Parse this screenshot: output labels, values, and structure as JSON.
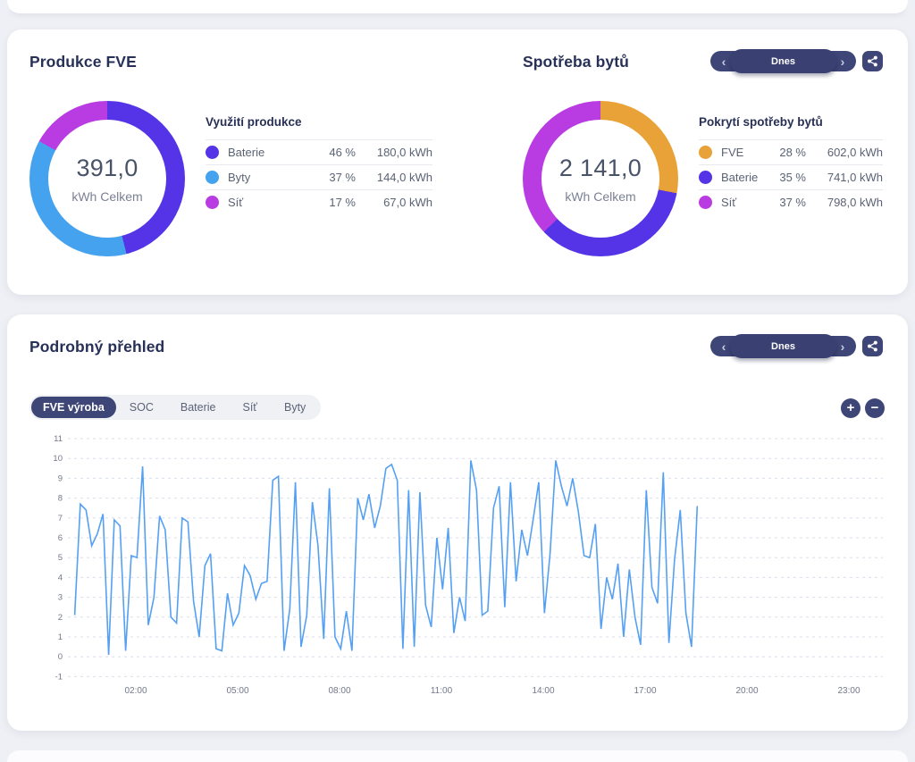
{
  "colors": {
    "page_bg": "#EFF0F5",
    "card_bg": "#FFFFFF",
    "accent_navy": "#3E4677",
    "title_text": "#273158",
    "grid_line": "#D9DEEA",
    "chart_line": "#55A0F2",
    "indigo": "#5434E6",
    "light_blue": "#44A2EE",
    "magenta": "#B93CE2",
    "orange": "#E8A237"
  },
  "icons": {
    "prev": "‹",
    "next": "›",
    "plus": "+",
    "minus": "−",
    "share": "share-nodes"
  },
  "date_selector": {
    "label": "Dnes"
  },
  "production": {
    "title": "Produkce FVE",
    "total": "391,0",
    "total_unit": "kWh Celkem",
    "legend_title": "Využití produkce",
    "rows": [
      {
        "label": "Baterie",
        "color": "#5434E6",
        "pct": 46,
        "pct_label": "46 %",
        "value": "180,0 kWh"
      },
      {
        "label": "Byty",
        "color": "#44A2EE",
        "pct": 37,
        "pct_label": "37 %",
        "value": "144,0 kWh"
      },
      {
        "label": "Síť",
        "color": "#B93CE2",
        "pct": 17,
        "pct_label": "17 %",
        "value": "67,0 kWh"
      }
    ]
  },
  "consumption": {
    "title": "Spotřeba bytů",
    "total": "2 141,0",
    "total_unit": "kWh Celkem",
    "legend_title": "Pokrytí spotřeby bytů",
    "rows": [
      {
        "label": "FVE",
        "color": "#E8A237",
        "pct": 28,
        "pct_label": "28 %",
        "value": "602,0 kWh"
      },
      {
        "label": "Baterie",
        "color": "#5434E6",
        "pct": 35,
        "pct_label": "35 %",
        "value": "741,0 kWh"
      },
      {
        "label": "Síť",
        "color": "#B93CE2",
        "pct": 37,
        "pct_label": "37 %",
        "value": "798,0 kWh"
      }
    ]
  },
  "detail": {
    "title": "Podrobný přehled",
    "tabs": [
      {
        "label": "FVE výroba",
        "active": true
      },
      {
        "label": "SOC",
        "active": false
      },
      {
        "label": "Baterie",
        "active": false
      },
      {
        "label": "Síť",
        "active": false
      },
      {
        "label": "Byty",
        "active": false
      }
    ]
  },
  "chart_data": {
    "type": "line",
    "title": "FVE výroba",
    "series_name": "FVE výroba",
    "color": "#55A0F2",
    "grid": "dashed-horizontal",
    "legend_position": "none",
    "ylim": [
      -1,
      11
    ],
    "y_ticks": [
      -1,
      0,
      1,
      2,
      3,
      4,
      5,
      6,
      7,
      8,
      9,
      10,
      11
    ],
    "x_axis_hours": [
      0,
      24
    ],
    "x_ticks": [
      "02:00",
      "05:00",
      "08:00",
      "11:00",
      "14:00",
      "17:00",
      "20:00",
      "23:00"
    ],
    "x_tick_hours": [
      2,
      5,
      8,
      11,
      14,
      17,
      20,
      23
    ],
    "x_start_hour": 0.2,
    "x_step_hour": 0.166667,
    "values": [
      2.1,
      7.7,
      7.4,
      5.6,
      6.2,
      7.2,
      0.1,
      6.9,
      6.6,
      0.3,
      5.1,
      5.0,
      9.6,
      1.6,
      3.0,
      7.1,
      6.4,
      2.0,
      1.7,
      7.0,
      6.8,
      2.8,
      1.0,
      4.6,
      5.2,
      0.4,
      0.3,
      3.2,
      1.6,
      2.2,
      4.6,
      4.1,
      2.9,
      3.7,
      3.8,
      8.9,
      9.1,
      0.3,
      2.4,
      8.8,
      0.5,
      2.1,
      7.8,
      5.6,
      0.9,
      8.5,
      1.0,
      0.4,
      2.3,
      0.3,
      8.0,
      6.9,
      8.2,
      6.5,
      7.6,
      9.5,
      9.7,
      8.9,
      0.4,
      8.4,
      0.5,
      8.3,
      2.6,
      1.5,
      6.0,
      3.4,
      6.5,
      1.2,
      3.0,
      1.8,
      9.9,
      8.4,
      2.1,
      2.3,
      7.5,
      8.6,
      2.5,
      8.8,
      3.8,
      6.4,
      5.1,
      6.9,
      8.8,
      2.2,
      5.2,
      9.9,
      8.6,
      7.6,
      9.0,
      7.3,
      5.1,
      5.0,
      6.7,
      1.4,
      4.0,
      2.9,
      4.7,
      1.0,
      4.4,
      2.0,
      0.6,
      8.4,
      3.5,
      2.7,
      9.3,
      0.7,
      4.9,
      7.4,
      2.2,
      0.5,
      7.6
    ]
  }
}
